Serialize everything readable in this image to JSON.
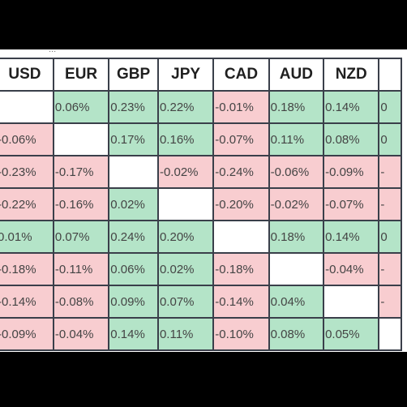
{
  "caption": "...",
  "currencies": [
    "USD",
    "EUR",
    "GBP",
    "JPY",
    "CAD",
    "AUD",
    "NZD",
    ""
  ],
  "rows": [
    [
      {
        "v": "",
        "t": "same"
      },
      {
        "v": "0.06%",
        "t": "pos"
      },
      {
        "v": "0.23%",
        "t": "pos"
      },
      {
        "v": "0.22%",
        "t": "pos"
      },
      {
        "v": "-0.01%",
        "t": "neg"
      },
      {
        "v": "0.18%",
        "t": "pos"
      },
      {
        "v": "0.14%",
        "t": "pos"
      },
      {
        "v": "0",
        "t": "pos"
      }
    ],
    [
      {
        "v": "-0.06%",
        "t": "neg"
      },
      {
        "v": "",
        "t": "same"
      },
      {
        "v": "0.17%",
        "t": "pos"
      },
      {
        "v": "0.16%",
        "t": "pos"
      },
      {
        "v": "-0.07%",
        "t": "neg"
      },
      {
        "v": "0.11%",
        "t": "pos"
      },
      {
        "v": "0.08%",
        "t": "pos"
      },
      {
        "v": "0",
        "t": "pos"
      }
    ],
    [
      {
        "v": "-0.23%",
        "t": "neg"
      },
      {
        "v": "-0.17%",
        "t": "neg"
      },
      {
        "v": "",
        "t": "same"
      },
      {
        "v": "-0.02%",
        "t": "neg"
      },
      {
        "v": "-0.24%",
        "t": "neg"
      },
      {
        "v": "-0.06%",
        "t": "neg"
      },
      {
        "v": "-0.09%",
        "t": "neg"
      },
      {
        "v": "-",
        "t": "neg"
      }
    ],
    [
      {
        "v": "-0.22%",
        "t": "neg"
      },
      {
        "v": "-0.16%",
        "t": "neg"
      },
      {
        "v": "0.02%",
        "t": "pos"
      },
      {
        "v": "",
        "t": "same"
      },
      {
        "v": "-0.20%",
        "t": "neg"
      },
      {
        "v": "-0.02%",
        "t": "neg"
      },
      {
        "v": "-0.07%",
        "t": "neg"
      },
      {
        "v": "-",
        "t": "neg"
      }
    ],
    [
      {
        "v": "0.01%",
        "t": "pos"
      },
      {
        "v": "0.07%",
        "t": "pos"
      },
      {
        "v": "0.24%",
        "t": "pos"
      },
      {
        "v": "0.20%",
        "t": "pos"
      },
      {
        "v": "",
        "t": "same"
      },
      {
        "v": "0.18%",
        "t": "pos"
      },
      {
        "v": "0.14%",
        "t": "pos"
      },
      {
        "v": "0",
        "t": "pos"
      }
    ],
    [
      {
        "v": "-0.18%",
        "t": "neg"
      },
      {
        "v": "-0.11%",
        "t": "neg"
      },
      {
        "v": "0.06%",
        "t": "pos"
      },
      {
        "v": "0.02%",
        "t": "pos"
      },
      {
        "v": "-0.18%",
        "t": "neg"
      },
      {
        "v": "",
        "t": "same"
      },
      {
        "v": "-0.04%",
        "t": "neg"
      },
      {
        "v": "-",
        "t": "neg"
      }
    ],
    [
      {
        "v": "-0.14%",
        "t": "neg"
      },
      {
        "v": "-0.08%",
        "t": "neg"
      },
      {
        "v": "0.09%",
        "t": "pos"
      },
      {
        "v": "0.07%",
        "t": "pos"
      },
      {
        "v": "-0.14%",
        "t": "neg"
      },
      {
        "v": "0.04%",
        "t": "pos"
      },
      {
        "v": "",
        "t": "same"
      },
      {
        "v": "-",
        "t": "neg"
      }
    ],
    [
      {
        "v": "-0.09%",
        "t": "neg"
      },
      {
        "v": "-0.04%",
        "t": "neg"
      },
      {
        "v": "0.14%",
        "t": "pos"
      },
      {
        "v": "0.11%",
        "t": "pos"
      },
      {
        "v": "-0.10%",
        "t": "neg"
      },
      {
        "v": "0.08%",
        "t": "pos"
      },
      {
        "v": "0.05%",
        "t": "pos"
      },
      {
        "v": "",
        "t": "same"
      }
    ]
  ]
}
